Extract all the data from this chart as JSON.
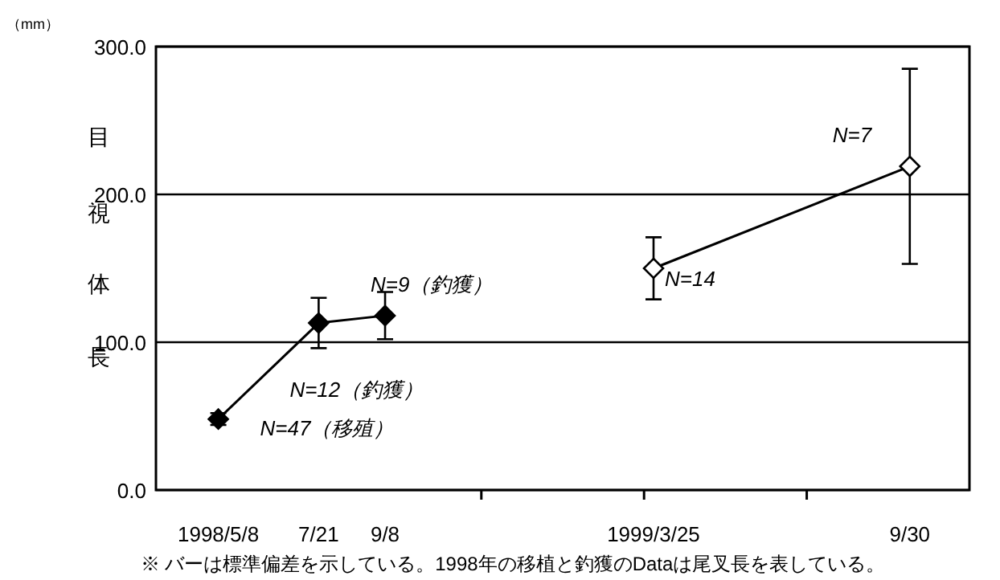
{
  "chart_data": {
    "type": "line",
    "ylabel": "目視体長",
    "series": [
      {
        "color": "#000000",
        "x": [
          "1998-05-08",
          "1998-07-21",
          "1998-09-08"
        ],
        "values": [
          48,
          113,
          118
        ],
        "errors": [
          4,
          17,
          16
        ]
      },
      {
        "color": "#ffffff",
        "x": [
          "1999-03-25",
          "1999-09-30"
        ],
        "values": [
          150,
          219
        ],
        "errors": [
          21,
          66
        ]
      }
    ],
    "xlim": [
      "1998-03-23",
      "1999-11-13"
    ],
    "xticks": [
      {
        "value": "1998-05-08",
        "label": "1998/5/8"
      },
      {
        "value": "1998-07-21",
        "label": "7/21"
      },
      {
        "value": "1998-09-08",
        "label": "9/8"
      },
      {
        "value": "1998-11-18",
        "label": null
      },
      {
        "value": "1999-03-18",
        "label": null
      },
      {
        "value": "1999-03-25",
        "label": "1999/3/25"
      },
      {
        "value": "1999-07-16",
        "label": null
      },
      {
        "value": "1999-09-30",
        "label": "9/30"
      }
    ],
    "ylim": [
      0,
      300
    ],
    "yticks": [
      {
        "value": 0,
        "label": "0.0"
      },
      {
        "value": 100,
        "label": "100.0"
      },
      {
        "value": 200,
        "label": "200.0"
      },
      {
        "value": 300,
        "label": "300.0"
      }
    ],
    "grid": "y",
    "marker": "diamond",
    "line_style": "solid",
    "annotations": [
      {
        "text": "N=47（移殖）",
        "x": "1998-05-08",
        "y": 48
      },
      {
        "text": "N=12（釣獲）",
        "x": "1998-07-21",
        "y": 113
      },
      {
        "text": "N=9（釣獲）",
        "x": "1998-09-08",
        "y": 118
      },
      {
        "text": "N=14",
        "x": "1999-03-25",
        "y": 150
      },
      {
        "text": "N=7",
        "x": "1999-09-30",
        "y": 219
      },
      "（mm）",
      "※ バーは標準偏差を示している。1998年の移植と釣獲のDataは尾叉長を表している。"
    ]
  }
}
